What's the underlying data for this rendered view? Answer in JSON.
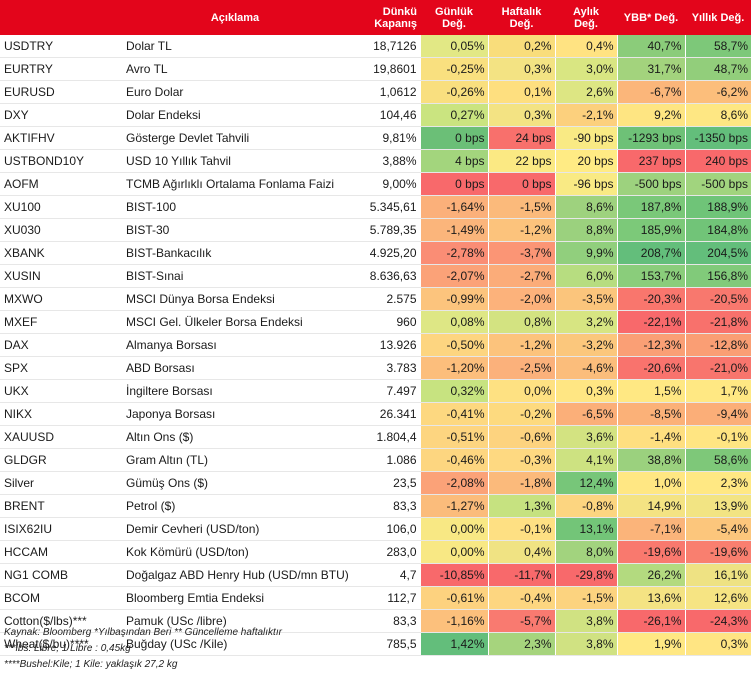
{
  "headers": {
    "code": "",
    "description": "Açıklama",
    "close_line1": "Dünkü",
    "close_line2": "Kapanış",
    "daily": "Günlük Değ.",
    "weekly_line1": "Haftalık",
    "weekly_line2": "Değ.",
    "monthly_line1": "Aylık",
    "monthly_line2": "Değ.",
    "ytd": "YBB* Değ.",
    "yearly": "Yıllık Değ."
  },
  "rows": [
    {
      "code": "USDTRY",
      "description": "Dolar TL",
      "close": "18,7126",
      "daily": "0,05%",
      "weekly": "0,2%",
      "monthly": "0,4%",
      "ytd": "40,7%",
      "yearly": "58,7%",
      "colors": [
        "#e2e885",
        "#f9dd7b",
        "#ffe382",
        "#8bcc7a",
        "#7dc879"
      ]
    },
    {
      "code": "EURTRY",
      "description": "Avro TL",
      "close": "19,8601",
      "daily": "-0,25%",
      "weekly": "0,3%",
      "monthly": "3,0%",
      "ytd": "31,7%",
      "yearly": "48,7%",
      "colors": [
        "#f9e07f",
        "#f3e383",
        "#d9e682",
        "#a3d37d",
        "#92ce7b"
      ]
    },
    {
      "code": "EURUSD",
      "description": "Euro Dolar",
      "close": "1,0612",
      "daily": "-0,26%",
      "weekly": "0,1%",
      "monthly": "2,6%",
      "ytd": "-6,7%",
      "yearly": "-6,2%",
      "colors": [
        "#f9df7f",
        "#fedf7f",
        "#dde683",
        "#fbb67a",
        "#fcbe7b"
      ]
    },
    {
      "code": "DXY",
      "description": "Dolar Endeksi",
      "close": "104,46",
      "daily": "0,27%",
      "weekly": "0,3%",
      "monthly": "-2,1%",
      "ytd": "9,2%",
      "yearly": "8,6%",
      "colors": [
        "#cae480",
        "#f3e383",
        "#fcd07d",
        "#fee582",
        "#fee783"
      ]
    },
    {
      "code": "AKTIFHV",
      "description": "Gösterge Devlet Tahvili",
      "close": "9,81%",
      "daily": "0 bps",
      "weekly": "24 bps",
      "monthly": "-90 bps",
      "ytd": "-1293 bps",
      "yearly": "-1350 bps",
      "colors": [
        "#6bbf77",
        "#f8706c",
        "#f9ea84",
        "#6ec177",
        "#63be7b"
      ]
    },
    {
      "code": "USTBOND10Y",
      "description": "USD 10 Yıllık Tahvil",
      "close": "3,88%",
      "daily": "4 bps",
      "weekly": "22 bps",
      "monthly": "20 bps",
      "ytd": "237 bps",
      "yearly": "240 bps",
      "colors": [
        "#a3d57d",
        "#fbe983",
        "#ffeb84",
        "#f8696b",
        "#f8696b"
      ]
    },
    {
      "code": "AOFM",
      "description": "TCMB Ağırlıklı Ortalama Fonlama Faizi",
      "close": "9,00%",
      "daily": "0 bps",
      "weekly": "0 bps",
      "monthly": "-96 bps",
      "ytd": "-500 bps",
      "yearly": "-500 bps",
      "colors": [
        "#f8696b",
        "#f8696b",
        "#f9ea84",
        "#9dd27e",
        "#a1d47e"
      ]
    },
    {
      "code": "XU100",
      "description": "BIST-100",
      "close": "5.345,61",
      "daily": "-1,64%",
      "weekly": "-1,5%",
      "monthly": "8,6%",
      "ytd": "187,8%",
      "yearly": "188,9%",
      "colors": [
        "#fbb07a",
        "#fbba7b",
        "#9ed27e",
        "#7ac879",
        "#6fc478"
      ]
    },
    {
      "code": "XU030",
      "description": "BIST-30",
      "close": "5.789,35",
      "daily": "-1,49%",
      "weekly": "-1,2%",
      "monthly": "8,8%",
      "ytd": "185,9%",
      "yearly": "184,8%",
      "colors": [
        "#fbb57b",
        "#fcc37c",
        "#9bd17e",
        "#7cc979",
        "#71c478"
      ]
    },
    {
      "code": "XBANK",
      "description": "BIST-Bankacılık",
      "close": "4.925,20",
      "daily": "-2,78%",
      "weekly": "-3,7%",
      "monthly": "9,9%",
      "ytd": "208,7%",
      "yearly": "204,5%",
      "colors": [
        "#fa8d75",
        "#fb9575",
        "#91cf7d",
        "#63be7b",
        "#63be7b"
      ]
    },
    {
      "code": "XUSIN",
      "description": "BIST-Sınai",
      "close": "8.636,63",
      "daily": "-2,07%",
      "weekly": "-2,7%",
      "monthly": "6,0%",
      "ytd": "153,7%",
      "yearly": "156,8%",
      "colors": [
        "#fba278",
        "#fbac79",
        "#b7dd80",
        "#8acd7b",
        "#81ca7a"
      ]
    },
    {
      "code": "MXWO",
      "description": "MSCI Dünya Borsa Endeksi",
      "close": "2.575",
      "daily": "-0,99%",
      "weekly": "-2,0%",
      "monthly": "-3,5%",
      "ytd": "-20,3%",
      "yearly": "-20,5%",
      "colors": [
        "#fcc47d",
        "#fcb27b",
        "#fbc57c",
        "#f9766d",
        "#f8786e"
      ]
    },
    {
      "code": "MXEF",
      "description": "MSCI Gel. Ülkeler Borsa Endeksi",
      "close": "960",
      "daily": "0,08%",
      "weekly": "0,8%",
      "monthly": "3,2%",
      "ytd": "-22,1%",
      "yearly": "-21,8%",
      "colors": [
        "#dee785",
        "#d3e381",
        "#d7e582",
        "#f8696b",
        "#f8716c"
      ]
    },
    {
      "code": "DAX",
      "description": "Almanya Borsası",
      "close": "13.926",
      "daily": "-0,50%",
      "weekly": "-1,2%",
      "monthly": "-3,2%",
      "ytd": "-12,3%",
      "yearly": "-12,8%",
      "colors": [
        "#fdd580",
        "#fcc37c",
        "#fbc77c",
        "#fa9f75",
        "#fa9e74"
      ]
    },
    {
      "code": "SPX",
      "description": "ABD Borsası",
      "close": "3.783",
      "daily": "-1,20%",
      "weekly": "-2,5%",
      "monthly": "-4,6%",
      "ytd": "-20,6%",
      "yearly": "-21,0%",
      "colors": [
        "#fcbe7c",
        "#fbb17b",
        "#fbbd7b",
        "#f9736d",
        "#f8756d"
      ]
    },
    {
      "code": "UKX",
      "description": "İngiltere Borsası",
      "close": "7.497",
      "daily": "0,32%",
      "weekly": "0,0%",
      "monthly": "0,3%",
      "ytd": "1,5%",
      "yearly": "1,7%",
      "colors": [
        "#c7e380",
        "#fee182",
        "#ffe683",
        "#ffe883",
        "#ffe883"
      ]
    },
    {
      "code": "NIKX",
      "description": "Japonya Borsası",
      "close": "26.341",
      "daily": "-0,41%",
      "weekly": "-0,2%",
      "monthly": "-6,5%",
      "ytd": "-8,5%",
      "yearly": "-9,4%",
      "colors": [
        "#fdd880",
        "#fdda7f",
        "#fbaf79",
        "#fbb178",
        "#fbae78"
      ]
    },
    {
      "code": "XAUUSD",
      "description": "Altın Ons ($)",
      "close": "1.804,4",
      "daily": "-0,51%",
      "weekly": "-0,6%",
      "monthly": "3,6%",
      "ytd": "-1,4%",
      "yearly": "-0,1%",
      "colors": [
        "#fdd580",
        "#fdd37f",
        "#d3e381",
        "#fedf80",
        "#ffe582"
      ]
    },
    {
      "code": "GLDGR",
      "description": "Gram Altın (TL)",
      "close": "1.086",
      "daily": "-0,46%",
      "weekly": "-0,3%",
      "monthly": "4,1%",
      "ytd": "38,8%",
      "yearly": "58,6%",
      "colors": [
        "#fdd680",
        "#fed981",
        "#cde281",
        "#9bd17e",
        "#7ec879"
      ]
    },
    {
      "code": "Silver",
      "description": "Gümüş Ons ($)",
      "close": "23,5",
      "daily": "-2,08%",
      "weekly": "-1,8%",
      "monthly": "12,4%",
      "ytd": "1,0%",
      "yearly": "2,3%",
      "colors": [
        "#fba278",
        "#fbba7b",
        "#77c679",
        "#ffe783",
        "#ffe883"
      ]
    },
    {
      "code": "BRENT",
      "description": "Petrol ($)",
      "close": "83,3",
      "daily": "-1,27%",
      "weekly": "1,3%",
      "monthly": "-0,8%",
      "ytd": "14,9%",
      "yearly": "13,9%",
      "colors": [
        "#fbbc7b",
        "#c6e280",
        "#fcd580",
        "#f4e383",
        "#f2e483"
      ]
    },
    {
      "code": "ISIX62IU",
      "description": "Demir Cevheri (USD/ton)",
      "close": "106,0",
      "daily": "0,00%",
      "weekly": "-0,1%",
      "monthly": "13,1%",
      "ytd": "-7,1%",
      "yearly": "-5,4%",
      "colors": [
        "#f8e884",
        "#fee083",
        "#73c578",
        "#fbb47a",
        "#fcc67c"
      ]
    },
    {
      "code": "HCCAM",
      "description": "Kok Kömürü (USD/ton)",
      "close": "283,0",
      "daily": "0,00%",
      "weekly": "0,4%",
      "monthly": "8,0%",
      "ytd": "-19,6%",
      "yearly": "-19,6%",
      "colors": [
        "#f8e884",
        "#f0e383",
        "#a2d37e",
        "#f9796e",
        "#f97f6f"
      ]
    },
    {
      "code": "NG1 COMB",
      "description": "Doğalgaz ABD Henry Hub (USD/mn BTU)",
      "close": "4,7",
      "daily": "-10,85%",
      "weekly": "-11,7%",
      "monthly": "-29,8%",
      "ytd": "26,2%",
      "yearly": "16,1%",
      "colors": [
        "#f8696b",
        "#f8696b",
        "#f8696b",
        "#b3da7f",
        "#eee283"
      ]
    },
    {
      "code": "BCOM",
      "description": "Bloomberg Emtia Endeksi",
      "close": "112,7",
      "daily": "-0,61%",
      "weekly": "-0,4%",
      "monthly": "-1,5%",
      "ytd": "13,6%",
      "yearly": "12,6%",
      "colors": [
        "#fdd27f",
        "#fdd680",
        "#fcd37f",
        "#f4e383",
        "#f6e483"
      ]
    },
    {
      "code": "Cotton($/lbs)***",
      "description": "Pamuk (USc /libre)",
      "close": "83,3",
      "daily": "-1,16%",
      "weekly": "-5,7%",
      "monthly": "3,8%",
      "ytd": "-26,1%",
      "yearly": "-24,3%",
      "colors": [
        "#fcc07c",
        "#f97a70",
        "#d0e282",
        "#f8696b",
        "#f8696b"
      ]
    },
    {
      "code": "Wheat($/bu)****",
      "description": "Buğday (USc /Kile)",
      "close": "785,5",
      "daily": "1,42%",
      "weekly": "2,3%",
      "monthly": "3,8%",
      "ytd": "1,9%",
      "yearly": "0,3%",
      "colors": [
        "#63be7b",
        "#a6d47d",
        "#d0e282",
        "#ffe883",
        "#ffe583"
      ]
    }
  ],
  "footnotes": [
    "Kaynak: Bloomberg *Yılbaşından Beri  ** Güncelleme haftalıktır",
    "***lbs: Libre; 1 Libre : 0,45kg",
    "****Bushel:Kile; 1 Kile: yaklaşık 27,2 kg"
  ]
}
